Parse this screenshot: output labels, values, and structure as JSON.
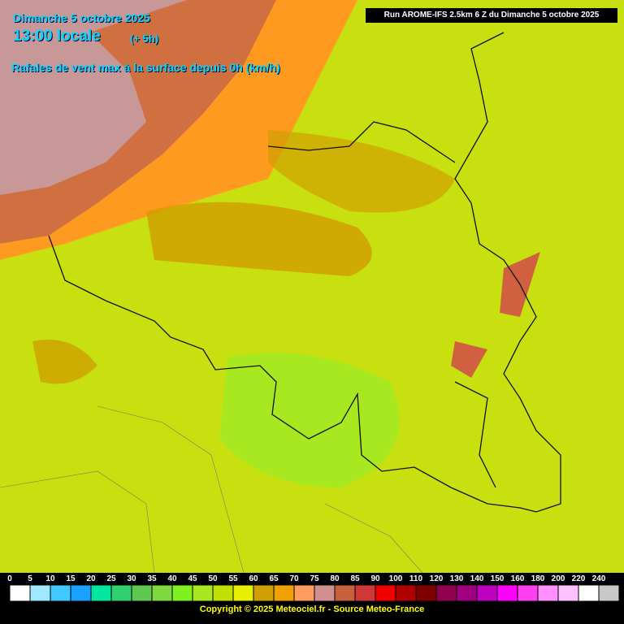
{
  "header": {
    "date": "Dimanche 5 octobre 2025",
    "time": "13:00 locale",
    "offset": "(+ 5h)",
    "parameter": "Rafales de vent max à la surface depuis 0h (km/h)"
  },
  "run_info": "Run AROME-IFS 2.5km 6 Z du Dimanche 5 octobre 2025",
  "legend": {
    "labels": [
      0,
      5,
      10,
      15,
      20,
      25,
      30,
      35,
      40,
      45,
      50,
      55,
      60,
      65,
      70,
      75,
      80,
      85,
      90,
      100,
      110,
      120,
      130,
      140,
      150,
      160,
      180,
      200,
      220,
      240
    ],
    "colors": [
      "#ffffff",
      "#a0e8ff",
      "#40c8ff",
      "#1aa0ff",
      "#00e8a0",
      "#30d070",
      "#60c850",
      "#80d840",
      "#80f020",
      "#a8e820",
      "#c0e000",
      "#e8f000",
      "#d0a000",
      "#f0a000",
      "#ff9a60",
      "#d09090",
      "#c86040",
      "#d03838",
      "#f00000",
      "#b00000",
      "#800000",
      "#900050",
      "#a00080",
      "#c000c0",
      "#ff00ff",
      "#ff40f0",
      "#ff90ff",
      "#ffc0ff",
      "#ffffff",
      "#c8c8c8"
    ]
  },
  "copyright": "Copyright © 2025 Meteociel.fr - Source Meteo-France"
}
